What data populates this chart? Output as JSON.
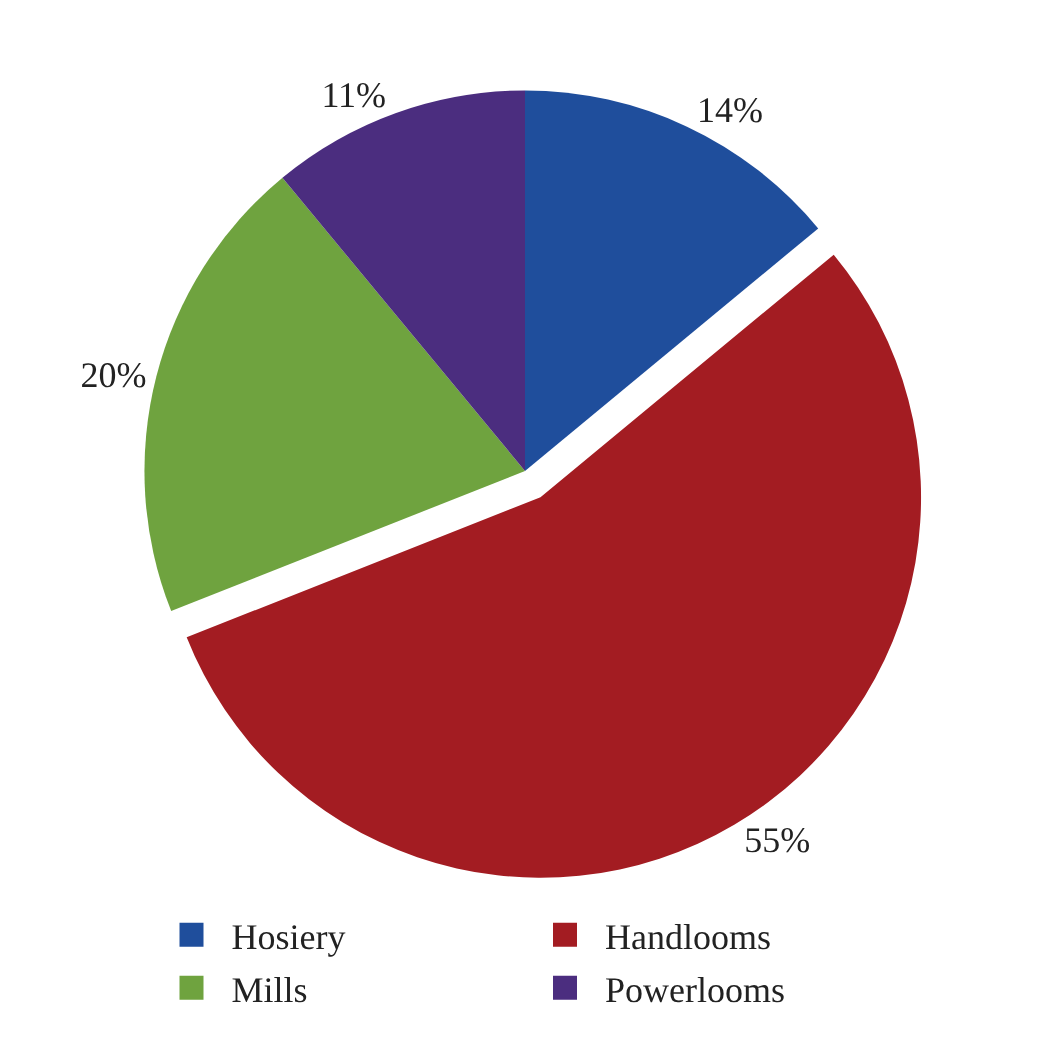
{
  "chart_data": {
    "type": "pie",
    "categories": [
      "Hosiery",
      "Handlooms",
      "Mills",
      "Powerlooms"
    ],
    "values": [
      14,
      55,
      20,
      11
    ],
    "colors": [
      "#1f4e9c",
      "#a31c22",
      "#6fa33f",
      "#4b2d7f"
    ],
    "value_labels": [
      "14%",
      "55%",
      "20%",
      "11%"
    ],
    "legend": "bottom"
  }
}
